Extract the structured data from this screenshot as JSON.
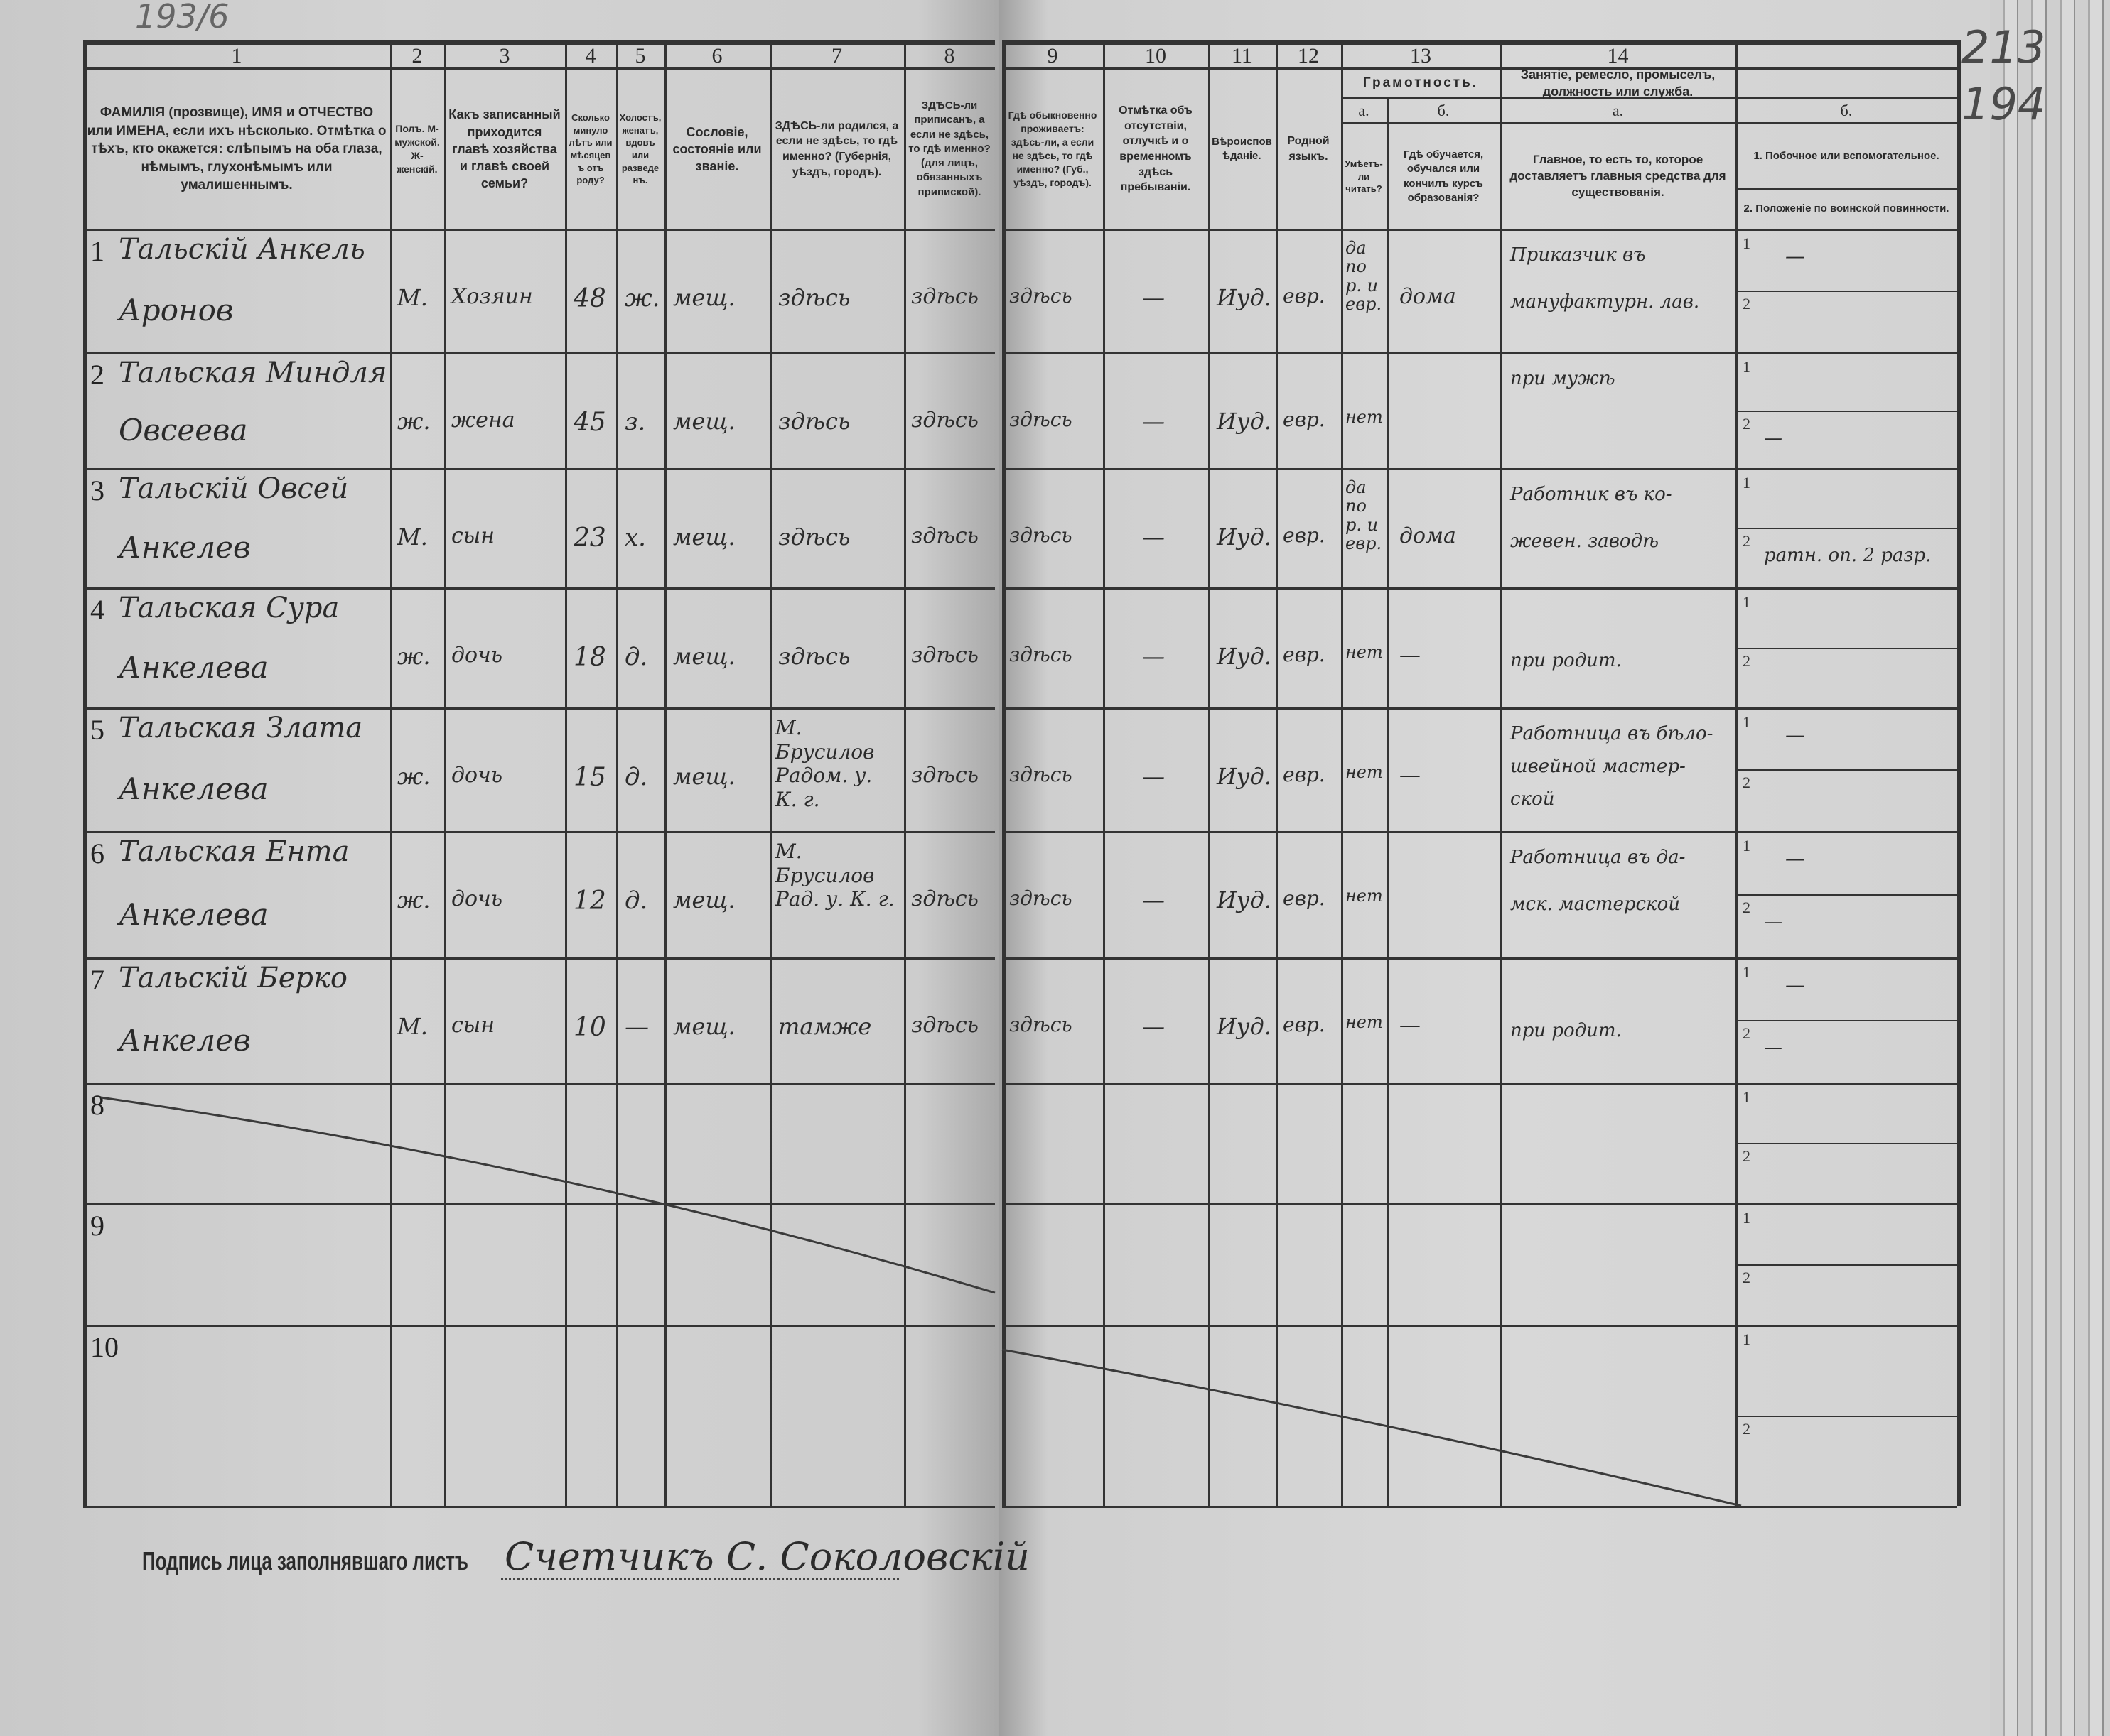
{
  "corner_numbers": {
    "top_left": "193/6",
    "top_right_1": "213",
    "top_right_2": "194"
  },
  "header": {
    "col1": {
      "num": "1",
      "text": "ФАМИЛІЯ (прозвище), ИМЯ и ОТЧЕСТВО или ИМЕНА, если ихъ нѣсколько. Отмѣтка о тѣхъ, кто окажется: слѣпымъ на оба глаза, нѣмымъ, глухонѣмымъ или умалишеннымъ."
    },
    "col2": {
      "num": "2",
      "text": "Полъ. М-мужской. Ж-женскій."
    },
    "col3": {
      "num": "3",
      "text": "Какъ записанный приходится главѣ хозяйства и главѣ своей семьи?"
    },
    "col4": {
      "num": "4",
      "text": "Сколько минуло лѣтъ или мѣсяцевъ отъ роду?"
    },
    "col5": {
      "num": "5",
      "text": "Холостъ, женатъ, вдовъ или разведенъ."
    },
    "col6": {
      "num": "6",
      "text": "Сословіе, состояніе или званіе."
    },
    "col7": {
      "num": "7",
      "text": "ЗДѢСЬ-ли родился, а если не здѣсь, то гдѣ именно? (Губернія, уѣздъ, городъ)."
    },
    "col8": {
      "num": "8",
      "text": "ЗДѢСЬ-ли приписанъ, а если не здѣсь, то гдѣ именно? (для лицъ, обязанныхъ припиской)."
    },
    "col9": {
      "num": "9",
      "text": "Гдѣ обыкновенно проживаетъ: здѣсь-ли, а если не здѣсь, то гдѣ именно? (Губ., уѣздъ, городъ)."
    },
    "col10": {
      "num": "10",
      "text": "Отмѣтка объ отсутствіи, отлучкѣ и о временномъ здѣсь пребываніи."
    },
    "col11": {
      "num": "11",
      "text": "Вѣроисповѣданіе."
    },
    "col12": {
      "num": "12",
      "text": "Родной языкъ."
    },
    "col13": {
      "num": "13",
      "title": "Грамотность.",
      "a_label": "а.",
      "a_text": "Умѣетъ-ли читать?",
      "b_label": "б.",
      "b_text": "Гдѣ обучается, обучался или кончилъ курсъ образованія?"
    },
    "col14": {
      "num": "14",
      "title": "Занятіе, ремесло, промыселъ, должность или служба.",
      "a_label": "а.",
      "a_text": "Главное, то есть то, которое доставляетъ главныя средства для существованія.",
      "b_label": "б.",
      "b_text_1": "1. Побочное или вспомогательное.",
      "b_text_2": "2. Положеніе по воинской повинности."
    }
  },
  "rows": [
    {
      "n": "1",
      "name": "Тальскій Анкель",
      "patronymic": "Аронов",
      "sex": "М.",
      "relation": "Хозяин",
      "age": "48",
      "marital": "ж.",
      "estate": "мещ.",
      "birthplace": "здѣсь",
      "registered": "здѣсь",
      "residence": "здѣсь",
      "absence": "—",
      "religion": "Иуд.",
      "language": "евр.",
      "literate": "да по р. и евр.",
      "education": "дома",
      "occupation": [
        "Приказчик въ",
        "мануфактурн. лав."
      ],
      "side_1": "—",
      "side_2": ""
    },
    {
      "n": "2",
      "name": "Тальская Миндля",
      "patronymic": "Овсеева",
      "sex": "ж.",
      "relation": "жена",
      "age": "45",
      "marital": "з.",
      "estate": "мещ.",
      "birthplace": "здѣсь",
      "registered": "здѣсь",
      "residence": "здѣсь",
      "absence": "—",
      "religion": "Иуд.",
      "language": "евр.",
      "literate": "нет",
      "education": "",
      "occupation": [
        "при мужѣ",
        ""
      ],
      "side_1": "",
      "side_2": "—"
    },
    {
      "n": "3",
      "name": "Тальскій Овсей",
      "patronymic": "Анкелев",
      "sex": "М.",
      "relation": "сын",
      "age": "23",
      "marital": "х.",
      "estate": "мещ.",
      "birthplace": "здѣсь",
      "registered": "здѣсь",
      "residence": "здѣсь",
      "absence": "—",
      "religion": "Иуд.",
      "language": "евр.",
      "literate": "да по р. и евр.",
      "education": "дома",
      "occupation": [
        "Работник въ ко-",
        "жевен. заводѣ"
      ],
      "side_1": "",
      "side_2": "ратн. оп. 2 разр."
    },
    {
      "n": "4",
      "name": "Тальская Сура",
      "patronymic": "Анкелева",
      "sex": "ж.",
      "relation": "дочь",
      "age": "18",
      "marital": "д.",
      "estate": "мещ.",
      "birthplace": "здѣсь",
      "registered": "здѣсь",
      "residence": "здѣсь",
      "absence": "—",
      "religion": "Иуд.",
      "language": "евр.",
      "literate": "нет",
      "education": "—",
      "occupation": [
        "",
        "при родит."
      ],
      "side_1": "",
      "side_2": ""
    },
    {
      "n": "5",
      "name": "Тальская Злата",
      "patronymic": "Анкелева",
      "sex": "ж.",
      "relation": "дочь",
      "age": "15",
      "marital": "д.",
      "estate": "мещ.",
      "birthplace": "М. Брусилов Радом. у. К. г.",
      "registered": "здѣсь",
      "residence": "здѣсь",
      "absence": "—",
      "religion": "Иуд.",
      "language": "евр.",
      "literate": "нет",
      "education": "—",
      "occupation": [
        "Работница въ бѣло-",
        "швейной мастер-",
        "ской"
      ],
      "side_1": "—",
      "side_2": ""
    },
    {
      "n": "6",
      "name": "Тальская Ента",
      "patronymic": "Анкелева",
      "sex": "ж.",
      "relation": "дочь",
      "age": "12",
      "marital": "д.",
      "estate": "мещ.",
      "birthplace": "М. Брусилов Рад. у. К. г.",
      "registered": "здѣсь",
      "residence": "здѣсь",
      "absence": "—",
      "religion": "Иуд.",
      "language": "евр.",
      "literate": "нет",
      "education": "",
      "occupation": [
        "Работница въ да-",
        "мск. мастерской"
      ],
      "side_1": "—",
      "side_2": "—"
    },
    {
      "n": "7",
      "name": "Тальскій Берко",
      "patronymic": "Анкелев",
      "sex": "М.",
      "relation": "сын",
      "age": "10",
      "marital": "—",
      "estate": "мещ.",
      "birthplace": "тамже",
      "registered": "здѣсь",
      "residence": "здѣсь",
      "absence": "—",
      "religion": "Иуд.",
      "language": "евр.",
      "literate": "нет",
      "education": "—",
      "occupation": [
        "",
        "при родит."
      ],
      "side_1": "—",
      "side_2": "—"
    },
    {
      "n": "8"
    },
    {
      "n": "9"
    },
    {
      "n": "10"
    }
  ],
  "sub_labels": {
    "one": "1",
    "two": "2"
  },
  "signature": {
    "label": "Подпись лица заполнявшаго листъ",
    "value": "Счетчикъ С. Соколовскій"
  }
}
